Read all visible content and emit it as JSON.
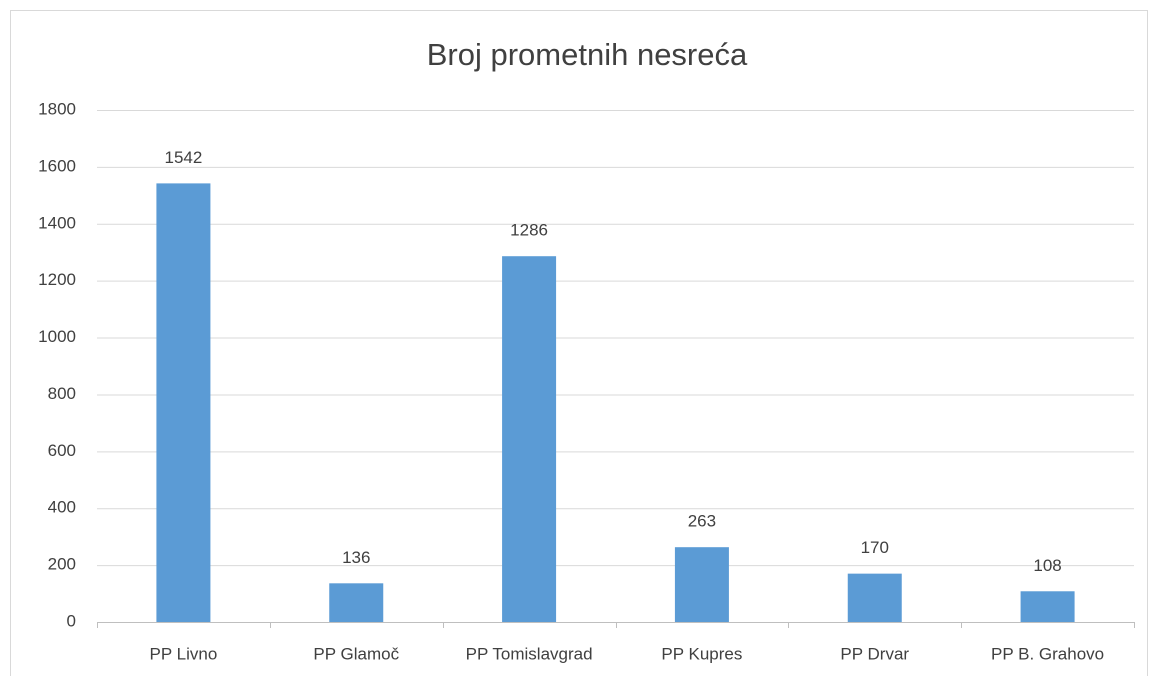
{
  "chart_data": {
    "type": "bar",
    "title": "Broj prometnih nesreća",
    "categories": [
      "PP Livno",
      "PP Glamoč",
      "PP Tomislavgrad",
      "PP Kupres",
      "PP Drvar",
      "PP B. Grahovo"
    ],
    "values": [
      1542,
      136,
      1286,
      263,
      170,
      108
    ],
    "color": "#5b9bd5",
    "ylim": [
      0,
      1800
    ],
    "yticks": [
      0,
      200,
      400,
      600,
      800,
      1000,
      1200,
      1400,
      1600,
      1800
    ],
    "grid": true
  }
}
